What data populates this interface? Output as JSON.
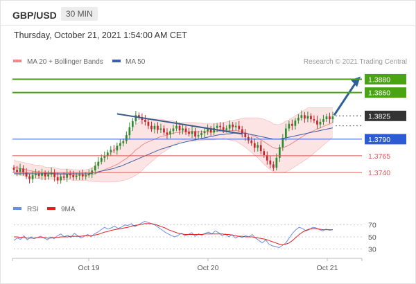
{
  "header": {
    "symbol": "GBP/USD",
    "timeframe": "30 MIN",
    "datetime": "Thursday, October 21, 2021 1:54:00 AM CET"
  },
  "legend": {
    "ma20_label": "MA 20 + Bollinger Bands",
    "ma50_label": "MA 50",
    "credit": "Research © 2021 Trading Central",
    "rsi_label": "RSI",
    "rsi_ma_label": "9MA"
  },
  "colors": {
    "ma20": "#f08a8a",
    "ma50": "#3a5fa8",
    "bollinger_fill": "#fbd5d5",
    "candle_up": "#2e8b2e",
    "candle_down": "#c2272d",
    "resistance": "#4aa312",
    "support_blue": "#2d5bd6",
    "support_red": "#e05555",
    "trendline": "#3d5a8a",
    "arrow": "#2f5f9a",
    "rsi": "#6b8fe0",
    "rsi_ma": "#e02020"
  },
  "levels": [
    {
      "price": "1.3880",
      "style": "green"
    },
    {
      "price": "1.3860",
      "style": "green"
    },
    {
      "price": "1.3825",
      "style": "current"
    },
    {
      "price": "1.3790",
      "style": "blue"
    },
    {
      "price": "1.3765",
      "style": "red"
    },
    {
      "price": "1.3740",
      "style": "red"
    }
  ],
  "chart_data": {
    "type": "candlestick",
    "x_labels": [
      "Oct 19",
      "Oct 20",
      "Oct 21"
    ],
    "ylim": [
      1.3716,
      1.3895
    ],
    "close": [
      1.3744,
      1.3741,
      1.3746,
      1.374,
      1.3734,
      1.373,
      1.3736,
      1.3738,
      1.3735,
      1.3739,
      1.3734,
      1.3737,
      1.374,
      1.3733,
      1.3728,
      1.3734,
      1.3732,
      1.3738,
      1.3736,
      1.3733,
      1.3735,
      1.3737,
      1.3734,
      1.3736,
      1.3738,
      1.3743,
      1.375,
      1.3756,
      1.3762,
      1.3765,
      1.377,
      1.3774,
      1.3773,
      1.378,
      1.3784,
      1.3787,
      1.3796,
      1.3808,
      1.3817,
      1.3826,
      1.3823,
      1.3819,
      1.3816,
      1.381,
      1.3805,
      1.381,
      1.3804,
      1.3806,
      1.38,
      1.3797,
      1.3802,
      1.3806,
      1.381,
      1.3803,
      1.3806,
      1.3801,
      1.3798,
      1.3802,
      1.3794,
      1.3796,
      1.3799,
      1.3802,
      1.3805,
      1.38,
      1.3807,
      1.381,
      1.3808,
      1.3804,
      1.3806,
      1.3812,
      1.3808,
      1.381,
      1.3805,
      1.3799,
      1.3793,
      1.3788,
      1.3784,
      1.3777,
      1.3781,
      1.3772,
      1.3766,
      1.3758,
      1.3752,
      1.3747,
      1.3762,
      1.3778,
      1.3792,
      1.3806,
      1.3813,
      1.381,
      1.3818,
      1.3822,
      1.3826,
      1.3821,
      1.3825,
      1.382,
      1.3818,
      1.3812,
      1.3816,
      1.382,
      1.3824,
      1.382,
      1.3824
    ],
    "series": [
      {
        "name": "MA 20",
        "values": [
          1.3748,
          1.3747,
          1.3746,
          1.3745,
          1.3744,
          1.3743,
          1.3742,
          1.3741,
          1.3741,
          1.374,
          1.3739,
          1.3739,
          1.3739,
          1.3738,
          1.3737,
          1.3737,
          1.3737,
          1.3737,
          1.3737,
          1.3736,
          1.3736,
          1.3736,
          1.3736,
          1.3736,
          1.3736,
          1.3737,
          1.3738,
          1.374,
          1.3742,
          1.3744,
          1.3746,
          1.3748,
          1.375,
          1.3752,
          1.3755,
          1.3758,
          1.3761,
          1.3765,
          1.3769,
          1.3774,
          1.3777,
          1.3781,
          1.3784,
          1.3786,
          1.3788,
          1.379,
          1.3792,
          1.3794,
          1.3795,
          1.3796,
          1.3798,
          1.3799,
          1.38,
          1.38,
          1.3801,
          1.3801,
          1.3801,
          1.3801,
          1.3801,
          1.3801,
          1.3801,
          1.3801,
          1.3801,
          1.3801,
          1.3801,
          1.3802,
          1.3802,
          1.3803,
          1.3803,
          1.3803,
          1.3803,
          1.3803,
          1.3802,
          1.3801,
          1.38,
          1.3798,
          1.3796,
          1.3794,
          1.3792,
          1.3789,
          1.3786,
          1.3783,
          1.378,
          1.3777,
          1.3776,
          1.3776,
          1.3777,
          1.3779,
          1.3781,
          1.3784,
          1.3787,
          1.379,
          1.3793,
          1.3796,
          1.3799,
          1.3801,
          1.3803,
          1.3805,
          1.3807,
          1.3809,
          1.3811,
          1.3813,
          1.3815
        ]
      },
      {
        "name": "MA 50",
        "values": [
          1.3738,
          1.3738,
          1.3738,
          1.3738,
          1.3738,
          1.3738,
          1.3738,
          1.3738,
          1.3738,
          1.3738,
          1.3738,
          1.3738,
          1.3738,
          1.3738,
          1.3738,
          1.3738,
          1.3738,
          1.3738,
          1.3738,
          1.3738,
          1.3738,
          1.3738,
          1.3738,
          1.3738,
          1.3738,
          1.3739,
          1.374,
          1.3741,
          1.3742,
          1.3743,
          1.3744,
          1.3745,
          1.3746,
          1.3748,
          1.3749,
          1.3751,
          1.3753,
          1.3755,
          1.3757,
          1.3759,
          1.3761,
          1.3763,
          1.3765,
          1.3767,
          1.3769,
          1.3771,
          1.3773,
          1.3775,
          1.3776,
          1.3778,
          1.3779,
          1.3781,
          1.3782,
          1.3784,
          1.3785,
          1.3786,
          1.3787,
          1.3788,
          1.3789,
          1.379,
          1.3791,
          1.3792,
          1.3793,
          1.3794,
          1.3795,
          1.3796,
          1.3797,
          1.3797,
          1.3798,
          1.3798,
          1.3799,
          1.3799,
          1.3799,
          1.3799,
          1.3799,
          1.3798,
          1.3797,
          1.3796,
          1.3795,
          1.3794,
          1.3793,
          1.3792,
          1.3791,
          1.379,
          1.379,
          1.379,
          1.3791,
          1.3792,
          1.3793,
          1.3794,
          1.3795,
          1.3796,
          1.3797,
          1.3798,
          1.3799,
          1.38,
          1.3801,
          1.3802,
          1.3803,
          1.3804,
          1.3805,
          1.3806,
          1.3807
        ]
      }
    ],
    "bollinger_width": [
      0.001,
      0.001,
      0.001,
      0.001,
      0.001,
      0.001,
      0.001,
      0.001,
      0.001,
      0.001,
      0.0009,
      0.0009,
      0.0009,
      0.0009,
      0.0009,
      0.0008,
      0.0008,
      0.0008,
      0.0008,
      0.0008,
      0.0008,
      0.0008,
      0.0008,
      0.0008,
      0.0009,
      0.001,
      0.0012,
      0.0014,
      0.0016,
      0.0018,
      0.002,
      0.0022,
      0.0024,
      0.0026,
      0.0028,
      0.003,
      0.0032,
      0.0034,
      0.0036,
      0.0038,
      0.0038,
      0.0038,
      0.0036,
      0.0034,
      0.0032,
      0.003,
      0.0028,
      0.0026,
      0.0024,
      0.0022,
      0.002,
      0.0018,
      0.0016,
      0.0014,
      0.0014,
      0.0014,
      0.0014,
      0.0014,
      0.0014,
      0.0013,
      0.0013,
      0.0012,
      0.0012,
      0.0012,
      0.0012,
      0.0012,
      0.0012,
      0.0012,
      0.0013,
      0.0014,
      0.0015,
      0.0016,
      0.0018,
      0.002,
      0.0022,
      0.0024,
      0.0026,
      0.0028,
      0.003,
      0.0032,
      0.0034,
      0.0035,
      0.0036,
      0.0036,
      0.0036,
      0.0036,
      0.0037,
      0.0038,
      0.0038,
      0.0038,
      0.0038,
      0.0038,
      0.0038,
      0.0038,
      0.0038,
      0.0036,
      0.0034,
      0.0032,
      0.003,
      0.0028,
      0.0026,
      0.0024,
      0.0022
    ],
    "trendline": [
      [
        1.3828,
        1.3798
      ]
    ],
    "rsi": {
      "yticks": [
        70,
        50,
        30
      ],
      "rsi_values": [
        44,
        48,
        46,
        52,
        45,
        50,
        47,
        49,
        51,
        48,
        45,
        50,
        47,
        52,
        55,
        50,
        53,
        49,
        56,
        52,
        48,
        51,
        54,
        50,
        55,
        58,
        62,
        66,
        63,
        65,
        68,
        64,
        66,
        70,
        69,
        72,
        67,
        70,
        73,
        76,
        74,
        72,
        70,
        66,
        62,
        58,
        55,
        52,
        50,
        53,
        56,
        52,
        54,
        57,
        51,
        55,
        53,
        56,
        58,
        55,
        60,
        57,
        52,
        55,
        50,
        54,
        48,
        51,
        49,
        52,
        50,
        54,
        48,
        44,
        40,
        45,
        38,
        35,
        34,
        32,
        36,
        40,
        48,
        56,
        62,
        66,
        64,
        60,
        62,
        66,
        65,
        62,
        60,
        63,
        61,
        62
      ],
      "ma_values": [
        50,
        50,
        49,
        49,
        48,
        48,
        48,
        49,
        49,
        49,
        48,
        48,
        49,
        49,
        50,
        50,
        50,
        51,
        51,
        51,
        51,
        52,
        52,
        52,
        53,
        54,
        56,
        58,
        59,
        61,
        62,
        63,
        64,
        65,
        66,
        68,
        69,
        70,
        71,
        72,
        72,
        72,
        71,
        69,
        67,
        65,
        62,
        60,
        58,
        56,
        55,
        54,
        54,
        54,
        54,
        54,
        54,
        55,
        55,
        55,
        55,
        55,
        55,
        54,
        54,
        53,
        52,
        51,
        51,
        50,
        50,
        50,
        49,
        48,
        47,
        46,
        44,
        42,
        40,
        38,
        37,
        38,
        40,
        44,
        49,
        54,
        58,
        61,
        63,
        64,
        64,
        63,
        62,
        62,
        62,
        62
      ]
    }
  }
}
